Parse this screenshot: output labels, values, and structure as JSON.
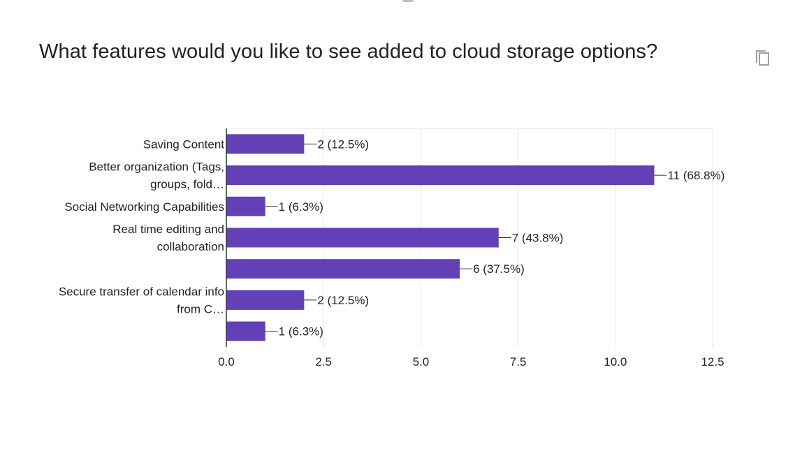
{
  "question": {
    "title": "What features would you like to see added to cloud storage options?"
  },
  "icons": {
    "copy": "copy-icon"
  },
  "colors": {
    "bar": "#6340b5",
    "gridline": "#e6e6e6",
    "axis": "#333333",
    "text": "#222222"
  },
  "chart_data": {
    "type": "bar",
    "orientation": "horizontal",
    "categories": [
      [
        "Saving Content"
      ],
      [
        "Better organization (Tags,",
        "groups, fold…"
      ],
      [
        "Social Networking Capabilities"
      ],
      [
        "Real time editing and",
        "collaboration"
      ],
      [],
      [
        "Secure transfer of calendar info",
        "from C…"
      ],
      []
    ],
    "values": [
      2,
      11,
      1,
      7,
      6,
      2,
      1
    ],
    "data_labels": [
      "2 (12.5%)",
      "11 (68.8%)",
      "1 (6.3%)",
      "7 (43.8%)",
      "6 (37.5%)",
      "2 (12.5%)",
      "1 (6.3%)"
    ],
    "xlim": [
      0,
      12.5
    ],
    "xticks": [
      0,
      2.5,
      5,
      7.5,
      10,
      12.5
    ],
    "xtick_labels": [
      "0.0",
      "2.5",
      "5.0",
      "7.5",
      "10.0",
      "12.5"
    ],
    "grid": true,
    "legend": "none"
  }
}
